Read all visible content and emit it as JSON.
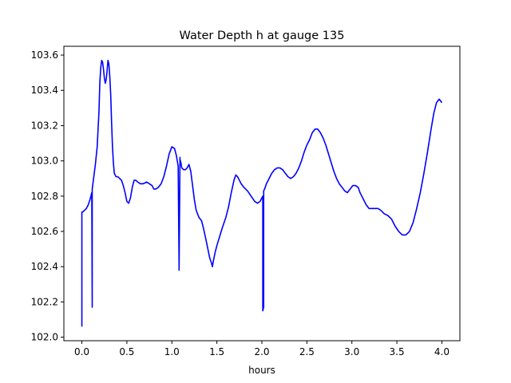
{
  "chart_data": {
    "type": "line",
    "title": "Water Depth h at gauge 135",
    "xlabel": "hours",
    "ylabel": "",
    "xlim": [
      -0.2,
      4.2
    ],
    "ylim": [
      101.98,
      103.65
    ],
    "xticks": [
      0.0,
      0.5,
      1.0,
      1.5,
      2.0,
      2.5,
      3.0,
      3.5,
      4.0
    ],
    "xtick_labels": [
      "0.0",
      "0.5",
      "1.0",
      "1.5",
      "2.0",
      "2.5",
      "3.0",
      "3.5",
      "4.0"
    ],
    "yticks": [
      102.0,
      102.2,
      102.4,
      102.6,
      102.8,
      103.0,
      103.2,
      103.4,
      103.6
    ],
    "ytick_labels": [
      "102.0",
      "102.2",
      "102.4",
      "102.6",
      "102.8",
      "103.0",
      "103.2",
      "103.4",
      "103.6"
    ],
    "grid": false,
    "series": [
      {
        "color": "#0000ff",
        "x": [
          0.0,
          0.0,
          0.01,
          0.03,
          0.05,
          0.07,
          0.09,
          0.11,
          0.115,
          0.115,
          0.12,
          0.12,
          0.13,
          0.15,
          0.17,
          0.19,
          0.2,
          0.21,
          0.22,
          0.23,
          0.24,
          0.25,
          0.26,
          0.27,
          0.28,
          0.29,
          0.3,
          0.31,
          0.32,
          0.33,
          0.34,
          0.35,
          0.36,
          0.38,
          0.4,
          0.42,
          0.44,
          0.46,
          0.48,
          0.5,
          0.52,
          0.54,
          0.56,
          0.58,
          0.6,
          0.62,
          0.65,
          0.68,
          0.72,
          0.75,
          0.78,
          0.8,
          0.82,
          0.85,
          0.88,
          0.91,
          0.94,
          0.97,
          1.0,
          1.03,
          1.05,
          1.07,
          1.08,
          1.08,
          1.09,
          1.09,
          1.1,
          1.11,
          1.13,
          1.15,
          1.17,
          1.19,
          1.21,
          1.23,
          1.25,
          1.27,
          1.3,
          1.33,
          1.35,
          1.38,
          1.4,
          1.42,
          1.44,
          1.45,
          1.46,
          1.48,
          1.5,
          1.53,
          1.56,
          1.6,
          1.63,
          1.66,
          1.69,
          1.71,
          1.73,
          1.75,
          1.77,
          1.8,
          1.84,
          1.88,
          1.92,
          1.95,
          1.98,
          2.0,
          2.01,
          2.01,
          2.02,
          2.02,
          2.03,
          2.05,
          2.08,
          2.11,
          2.14,
          2.17,
          2.2,
          2.23,
          2.26,
          2.29,
          2.32,
          2.35,
          2.38,
          2.41,
          2.44,
          2.47,
          2.5,
          2.53,
          2.56,
          2.59,
          2.62,
          2.65,
          2.68,
          2.71,
          2.74,
          2.77,
          2.8,
          2.83,
          2.86,
          2.89,
          2.92,
          2.95,
          2.98,
          3.01,
          3.04,
          3.07,
          3.09,
          3.11,
          3.13,
          3.16,
          3.19,
          3.22,
          3.25,
          3.29,
          3.32,
          3.36,
          3.4,
          3.44,
          3.48,
          3.52,
          3.56,
          3.6,
          3.64,
          3.68,
          3.72,
          3.76,
          3.8,
          3.84,
          3.88,
          3.91,
          3.94,
          3.97,
          4.0
        ],
        "y": [
          102.06,
          102.71,
          102.71,
          102.72,
          102.73,
          102.75,
          102.78,
          102.82,
          102.17,
          102.84,
          102.86,
          102.86,
          102.9,
          102.98,
          103.08,
          103.28,
          103.45,
          103.53,
          103.57,
          103.56,
          103.52,
          103.47,
          103.44,
          103.46,
          103.51,
          103.57,
          103.55,
          103.48,
          103.38,
          103.22,
          103.08,
          102.99,
          102.93,
          102.91,
          102.91,
          102.9,
          102.89,
          102.86,
          102.82,
          102.77,
          102.76,
          102.79,
          102.85,
          102.89,
          102.89,
          102.88,
          102.87,
          102.87,
          102.88,
          102.87,
          102.86,
          102.84,
          102.84,
          102.85,
          102.87,
          102.91,
          102.97,
          103.04,
          103.08,
          103.07,
          103.03,
          102.97,
          102.4,
          102.38,
          103.02,
          103.01,
          102.99,
          102.96,
          102.95,
          102.95,
          102.96,
          102.98,
          102.94,
          102.86,
          102.78,
          102.72,
          102.68,
          102.66,
          102.62,
          102.55,
          102.5,
          102.45,
          102.42,
          102.4,
          102.43,
          102.48,
          102.52,
          102.57,
          102.62,
          102.68,
          102.74,
          102.82,
          102.89,
          102.92,
          102.91,
          102.89,
          102.87,
          102.85,
          102.83,
          102.8,
          102.77,
          102.76,
          102.77,
          102.79,
          102.8,
          102.15,
          102.17,
          102.83,
          102.84,
          102.87,
          102.9,
          102.93,
          102.95,
          102.96,
          102.96,
          102.95,
          102.93,
          102.91,
          102.9,
          102.91,
          102.93,
          102.96,
          103.0,
          103.05,
          103.09,
          103.12,
          103.16,
          103.18,
          103.18,
          103.16,
          103.13,
          103.09,
          103.04,
          102.99,
          102.94,
          102.9,
          102.87,
          102.85,
          102.83,
          102.82,
          102.84,
          102.86,
          102.86,
          102.85,
          102.82,
          102.8,
          102.78,
          102.75,
          102.73,
          102.73,
          102.73,
          102.73,
          102.72,
          102.7,
          102.69,
          102.67,
          102.63,
          102.6,
          102.58,
          102.58,
          102.6,
          102.65,
          102.73,
          102.82,
          102.93,
          103.05,
          103.18,
          103.27,
          103.33,
          103.35,
          103.33
        ]
      }
    ]
  }
}
